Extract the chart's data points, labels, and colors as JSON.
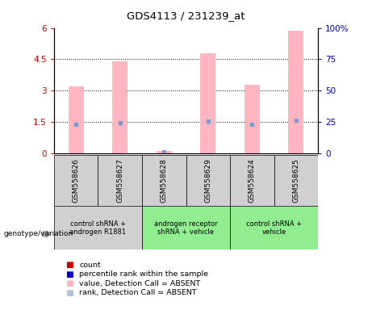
{
  "title": "GDS4113 / 231239_at",
  "samples": [
    "GSM558626",
    "GSM558627",
    "GSM558628",
    "GSM558629",
    "GSM558624",
    "GSM558625"
  ],
  "pink_bar_values": [
    3.2,
    4.4,
    0.12,
    4.8,
    3.3,
    5.85
  ],
  "blue_dot_values": [
    1.38,
    1.45,
    0.07,
    1.55,
    1.4,
    1.57
  ],
  "left_ylim": [
    0,
    6
  ],
  "right_ylim": [
    0,
    100
  ],
  "left_yticks": [
    0,
    1.5,
    3,
    4.5,
    6
  ],
  "right_yticks": [
    0,
    25,
    50,
    75,
    100
  ],
  "left_yticklabels": [
    "0",
    "1.5",
    "3",
    "4.5",
    "6"
  ],
  "right_yticklabels": [
    "0",
    "25",
    "50",
    "75",
    "100%"
  ],
  "group_defs": [
    {
      "start": 0,
      "end": 1,
      "label": "control shRNA +\nandrogen R1881",
      "color": "#d0d0d0"
    },
    {
      "start": 2,
      "end": 3,
      "label": "androgen receptor\nshRNA + vehicle",
      "color": "#90ee90"
    },
    {
      "start": 4,
      "end": 5,
      "label": "control shRNA +\nvehicle",
      "color": "#90ee90"
    }
  ],
  "genotype_label": "genotype/variation",
  "legend_colors": [
    "#cc0000",
    "#0000cc",
    "#ffb6c1",
    "#b0c4de"
  ],
  "legend_labels": [
    "count",
    "percentile rank within the sample",
    "value, Detection Call = ABSENT",
    "rank, Detection Call = ABSENT"
  ],
  "pink_color": "#ffb6c1",
  "blue_dot_color": "#7b9ccc",
  "left_tick_color": "#cc0000",
  "right_tick_color": "#0000cc",
  "sample_box_color": "#d0d0d0",
  "bar_width": 0.35
}
